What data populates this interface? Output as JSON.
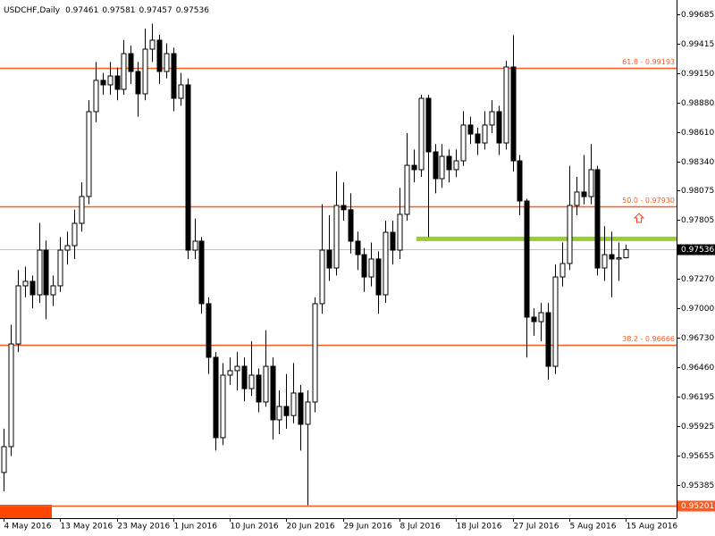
{
  "chart_data": {
    "type": "candlestick",
    "title": "USDCHF,Daily",
    "categories": [
      "4 May 2016",
      null,
      null,
      null,
      null,
      null,
      null,
      null,
      "13 May 2016",
      null,
      null,
      null,
      null,
      null,
      null,
      null,
      "23 May 2016",
      null,
      null,
      null,
      null,
      null,
      null,
      null,
      "1 Jun 2016",
      null,
      null,
      null,
      null,
      null,
      null,
      null,
      "10 Jun 2016",
      null,
      null,
      null,
      null,
      null,
      null,
      null,
      "20 Jun 2016",
      null,
      null,
      null,
      null,
      null,
      null,
      null,
      "29 Jun 2016",
      null,
      null,
      null,
      null,
      null,
      null,
      null,
      "8 Jul 2016",
      null,
      null,
      null,
      null,
      null,
      null,
      null,
      "18 Jul 2016",
      null,
      null,
      null,
      null,
      null,
      null,
      null,
      "27 Jul 2016",
      null,
      null,
      null,
      null,
      null,
      null,
      null,
      "5 Aug 2016",
      null,
      null,
      null,
      null,
      null,
      null,
      null,
      "15 Aug 2016"
    ],
    "open": [
      0.955,
      0.95736,
      0.96674,
      0.97205,
      0.97246,
      0.97123,
      0.97531,
      0.97123,
      0.97205,
      0.97531,
      0.97572,
      0.97776,
      0.98021,
      0.98796,
      0.99082,
      0.99041,
      0.99122,
      0.99,
      0.99326,
      0.99163,
      0.98959,
      0.99367,
      0.99449,
      0.99163,
      0.99326,
      0.98918,
      0.99041,
      0.97531,
      0.97613,
      0.97042,
      0.96552,
      0.95818,
      0.96389,
      0.9643,
      0.9647,
      0.96266,
      0.96389,
      0.96144,
      0.9647,
      0.95981,
      0.96103,
      0.9602,
      0.96226,
      0.9594,
      0.96144,
      0.97042,
      0.97531,
      0.97368,
      0.97939,
      0.979,
      0.97613,
      0.9749,
      0.97286,
      0.9745,
      0.97123,
      0.97694,
      0.97531,
      0.97858,
      0.98306,
      0.98266,
      0.98918,
      0.98429,
      0.98184,
      0.98388,
      0.98266,
      0.98347,
      0.98674,
      0.98592,
      0.9851,
      0.98674,
      0.98796,
      0.9851,
      0.99204,
      0.98347,
      0.9798,
      0.96919,
      0.96878,
      0.9696,
      0.9647,
      0.97286,
      0.97409,
      0.97939,
      0.98062,
      0.9802,
      0.98266,
      0.97368,
      0.9749,
      0.9745,
      0.97461
    ],
    "high": [
      0.959,
      0.9685,
      0.9735,
      0.9738,
      0.973,
      0.9778,
      0.9762,
      0.973,
      0.9765,
      0.977,
      0.979,
      0.9815,
      0.989,
      0.9925,
      0.9915,
      0.9925,
      0.992,
      0.9945,
      0.994,
      0.9925,
      0.99555,
      0.996,
      0.995,
      0.9942,
      0.9938,
      0.9915,
      0.991,
      0.9782,
      0.9765,
      0.971,
      0.966,
      0.965,
      0.9655,
      0.966,
      0.9655,
      0.967,
      0.9645,
      0.968,
      0.9655,
      0.9625,
      0.964,
      0.965,
      0.963,
      0.9625,
      0.971,
      0.9795,
      0.9785,
      0.9825,
      0.9815,
      0.9805,
      0.977,
      0.9755,
      0.976,
      0.9752,
      0.978,
      0.978,
      0.981,
      0.986,
      0.9845,
      0.9895,
      0.9895,
      0.985,
      0.985,
      0.9845,
      0.9845,
      0.988,
      0.9875,
      0.9865,
      0.988,
      0.989,
      0.9885,
      0.9926,
      0.99495,
      0.984,
      0.98,
      0.97,
      0.9705,
      0.9705,
      0.974,
      0.976,
      0.983,
      0.982,
      0.984,
      0.985,
      0.983,
      0.9775,
      0.977,
      0.976,
      0.97581
    ],
    "low": [
      0.95328,
      0.9565,
      0.966,
      0.971,
      0.97,
      0.9705,
      0.969,
      0.9702,
      0.9715,
      0.974,
      0.9745,
      0.977,
      0.9795,
      0.987,
      0.9895,
      0.9895,
      0.989,
      0.9895,
      0.9905,
      0.9875,
      0.989,
      0.9925,
      0.9905,
      0.991,
      0.988,
      0.9885,
      0.9745,
      0.9745,
      0.9695,
      0.964,
      0.957,
      0.9575,
      0.963,
      0.9625,
      0.9615,
      0.962,
      0.9605,
      0.961,
      0.958,
      0.9585,
      0.959,
      0.9595,
      0.957,
      0.95201,
      0.9605,
      0.9695,
      0.9725,
      0.973,
      0.978,
      0.975,
      0.9735,
      0.9715,
      0.972,
      0.9695,
      0.9705,
      0.974,
      0.9745,
      0.978,
      0.9815,
      0.982,
      0.9765,
      0.9805,
      0.981,
      0.9815,
      0.982,
      0.983,
      0.985,
      0.984,
      0.9845,
      0.986,
      0.984,
      0.9845,
      0.9825,
      0.9785,
      0.9655,
      0.9675,
      0.967,
      0.96348,
      0.964,
      0.972,
      0.9735,
      0.9785,
      0.9795,
      0.9795,
      0.973,
      0.9725,
      0.971,
      0.9725,
      0.97457
    ],
    "close": [
      0.95736,
      0.96674,
      0.97205,
      0.97246,
      0.97123,
      0.97531,
      0.97123,
      0.97205,
      0.97531,
      0.97572,
      0.97776,
      0.98021,
      0.98796,
      0.99082,
      0.99041,
      0.99122,
      0.99,
      0.99326,
      0.99163,
      0.98959,
      0.99367,
      0.99449,
      0.99163,
      0.99326,
      0.98918,
      0.99041,
      0.97531,
      0.97613,
      0.97042,
      0.96552,
      0.95818,
      0.96389,
      0.9643,
      0.9647,
      0.96266,
      0.96389,
      0.96144,
      0.9647,
      0.95981,
      0.96103,
      0.9602,
      0.96226,
      0.9594,
      0.96144,
      0.97042,
      0.97531,
      0.97368,
      0.97939,
      0.979,
      0.97613,
      0.9749,
      0.97286,
      0.9745,
      0.97123,
      0.97694,
      0.97531,
      0.97858,
      0.98306,
      0.98266,
      0.98918,
      0.98429,
      0.98184,
      0.98388,
      0.98266,
      0.98347,
      0.98674,
      0.98592,
      0.9851,
      0.98674,
      0.98796,
      0.9851,
      0.99204,
      0.98347,
      0.9798,
      0.96919,
      0.96878,
      0.9696,
      0.9647,
      0.97286,
      0.97409,
      0.97939,
      0.98062,
      0.9802,
      0.98266,
      0.97368,
      0.9749,
      0.9745,
      0.97461,
      0.97536
    ],
    "up_color": "#ffffff",
    "down_color": "#000000",
    "ylim": [
      0.95083,
      0.99816
    ],
    "yticks": [
      {
        "value": 0.99685,
        "label": "0.99685"
      },
      {
        "value": 0.99415,
        "label": "0.99415"
      },
      {
        "value": 0.9915,
        "label": "0.99150"
      },
      {
        "value": 0.9888,
        "label": "0.98880"
      },
      {
        "value": 0.9861,
        "label": "0.98610"
      },
      {
        "value": 0.9834,
        "label": "0.98340"
      },
      {
        "value": 0.98075,
        "label": "0.98075"
      },
      {
        "value": 0.97805,
        "label": "0.97805"
      },
      {
        "value": 0.9727,
        "label": "0.97270"
      },
      {
        "value": 0.97,
        "label": "0.97000"
      },
      {
        "value": 0.9673,
        "label": "0.96730"
      },
      {
        "value": 0.9646,
        "label": "0.96460"
      },
      {
        "value": 0.96195,
        "label": "0.96195"
      },
      {
        "value": 0.95925,
        "label": "0.95925"
      },
      {
        "value": 0.95655,
        "label": "0.95655"
      },
      {
        "value": 0.95385,
        "label": "0.95385"
      }
    ],
    "grid": false,
    "levels": [
      {
        "value": 0.99193,
        "label": "61.8 - 0.99193"
      },
      {
        "value": 0.9793,
        "label": "50.0 - 0.97930"
      },
      {
        "value": 0.96666,
        "label": "38.2 - 0.96666"
      }
    ],
    "level_color": "#ff5a1f",
    "low_line": {
      "value": 0.95201,
      "label": "0.95201"
    },
    "support": {
      "value": 0.97634,
      "color": "#9acd32"
    }
  }
}
